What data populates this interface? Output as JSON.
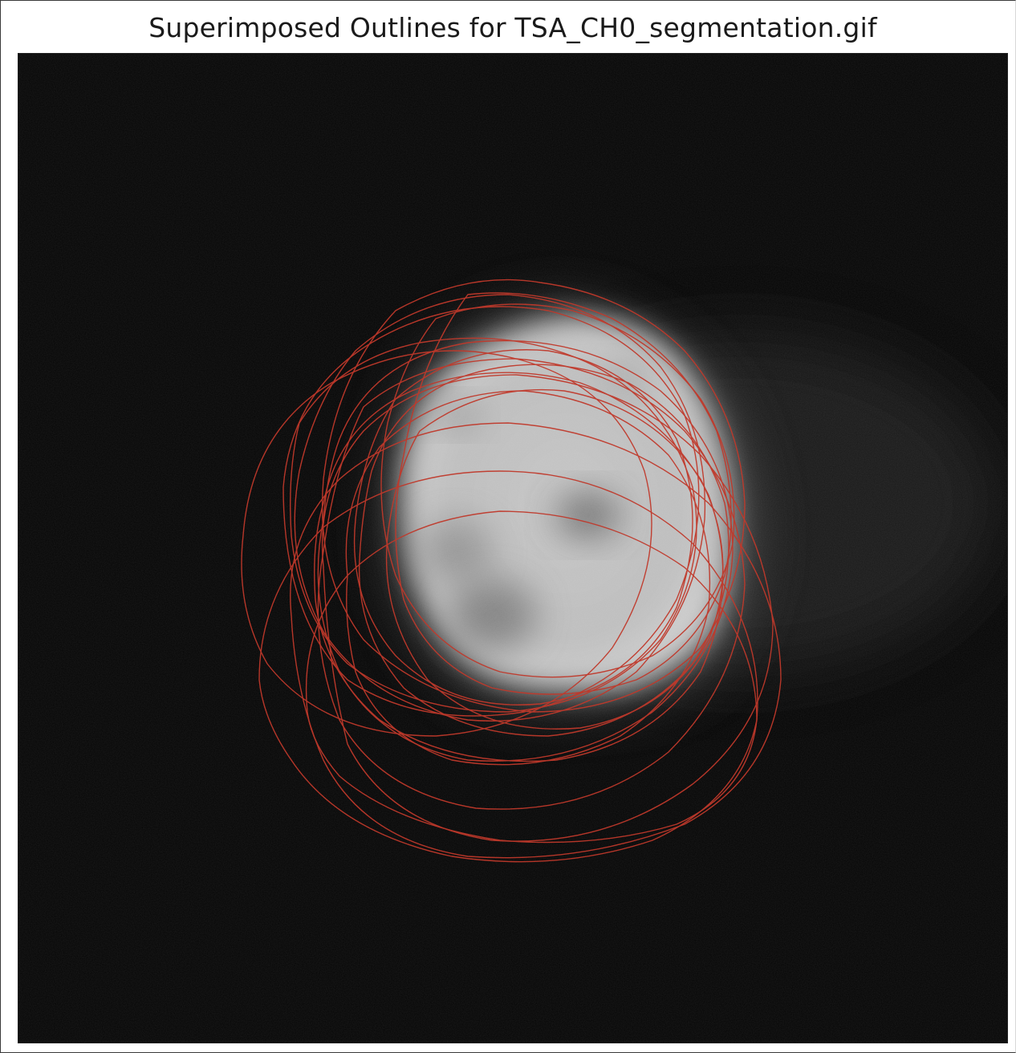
{
  "figure": {
    "title": "Superimposed Outlines for TSA_CH0_segmentation.gif"
  },
  "image": {
    "subject": "microscopy-nucleus",
    "outline_color": "#c0392b",
    "background_color": "#050505"
  }
}
